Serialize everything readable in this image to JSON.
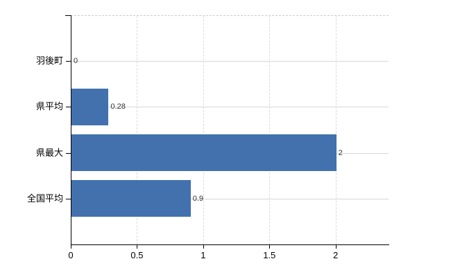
{
  "chart_data": {
    "type": "bar",
    "orientation": "horizontal",
    "title": "",
    "xlabel": "",
    "ylabel": "",
    "categories": [
      "羽後町",
      "県平均",
      "県最大",
      "全国平均"
    ],
    "values": [
      0,
      0.28,
      2,
      0.9
    ],
    "value_labels": [
      "0",
      "0.28",
      "2",
      "0.9"
    ],
    "x_ticks": [
      0,
      0.5,
      1,
      1.5,
      2
    ],
    "x_tick_labels": [
      "0",
      "0.5",
      "1",
      "1.5",
      "2"
    ],
    "xlim": [
      0,
      2.4
    ],
    "grid": "on",
    "legend": "none",
    "colors": {
      "bar": "#4271ae",
      "h_gridline": "#d4d9d2",
      "v_gridline": "#d9d9e1",
      "plot_top_border": "#cbcbcb",
      "axis": "#000000",
      "category_label": "#000000",
      "tick_label": "#000000",
      "value_label": "#333333",
      "background": "#ffffff"
    }
  }
}
